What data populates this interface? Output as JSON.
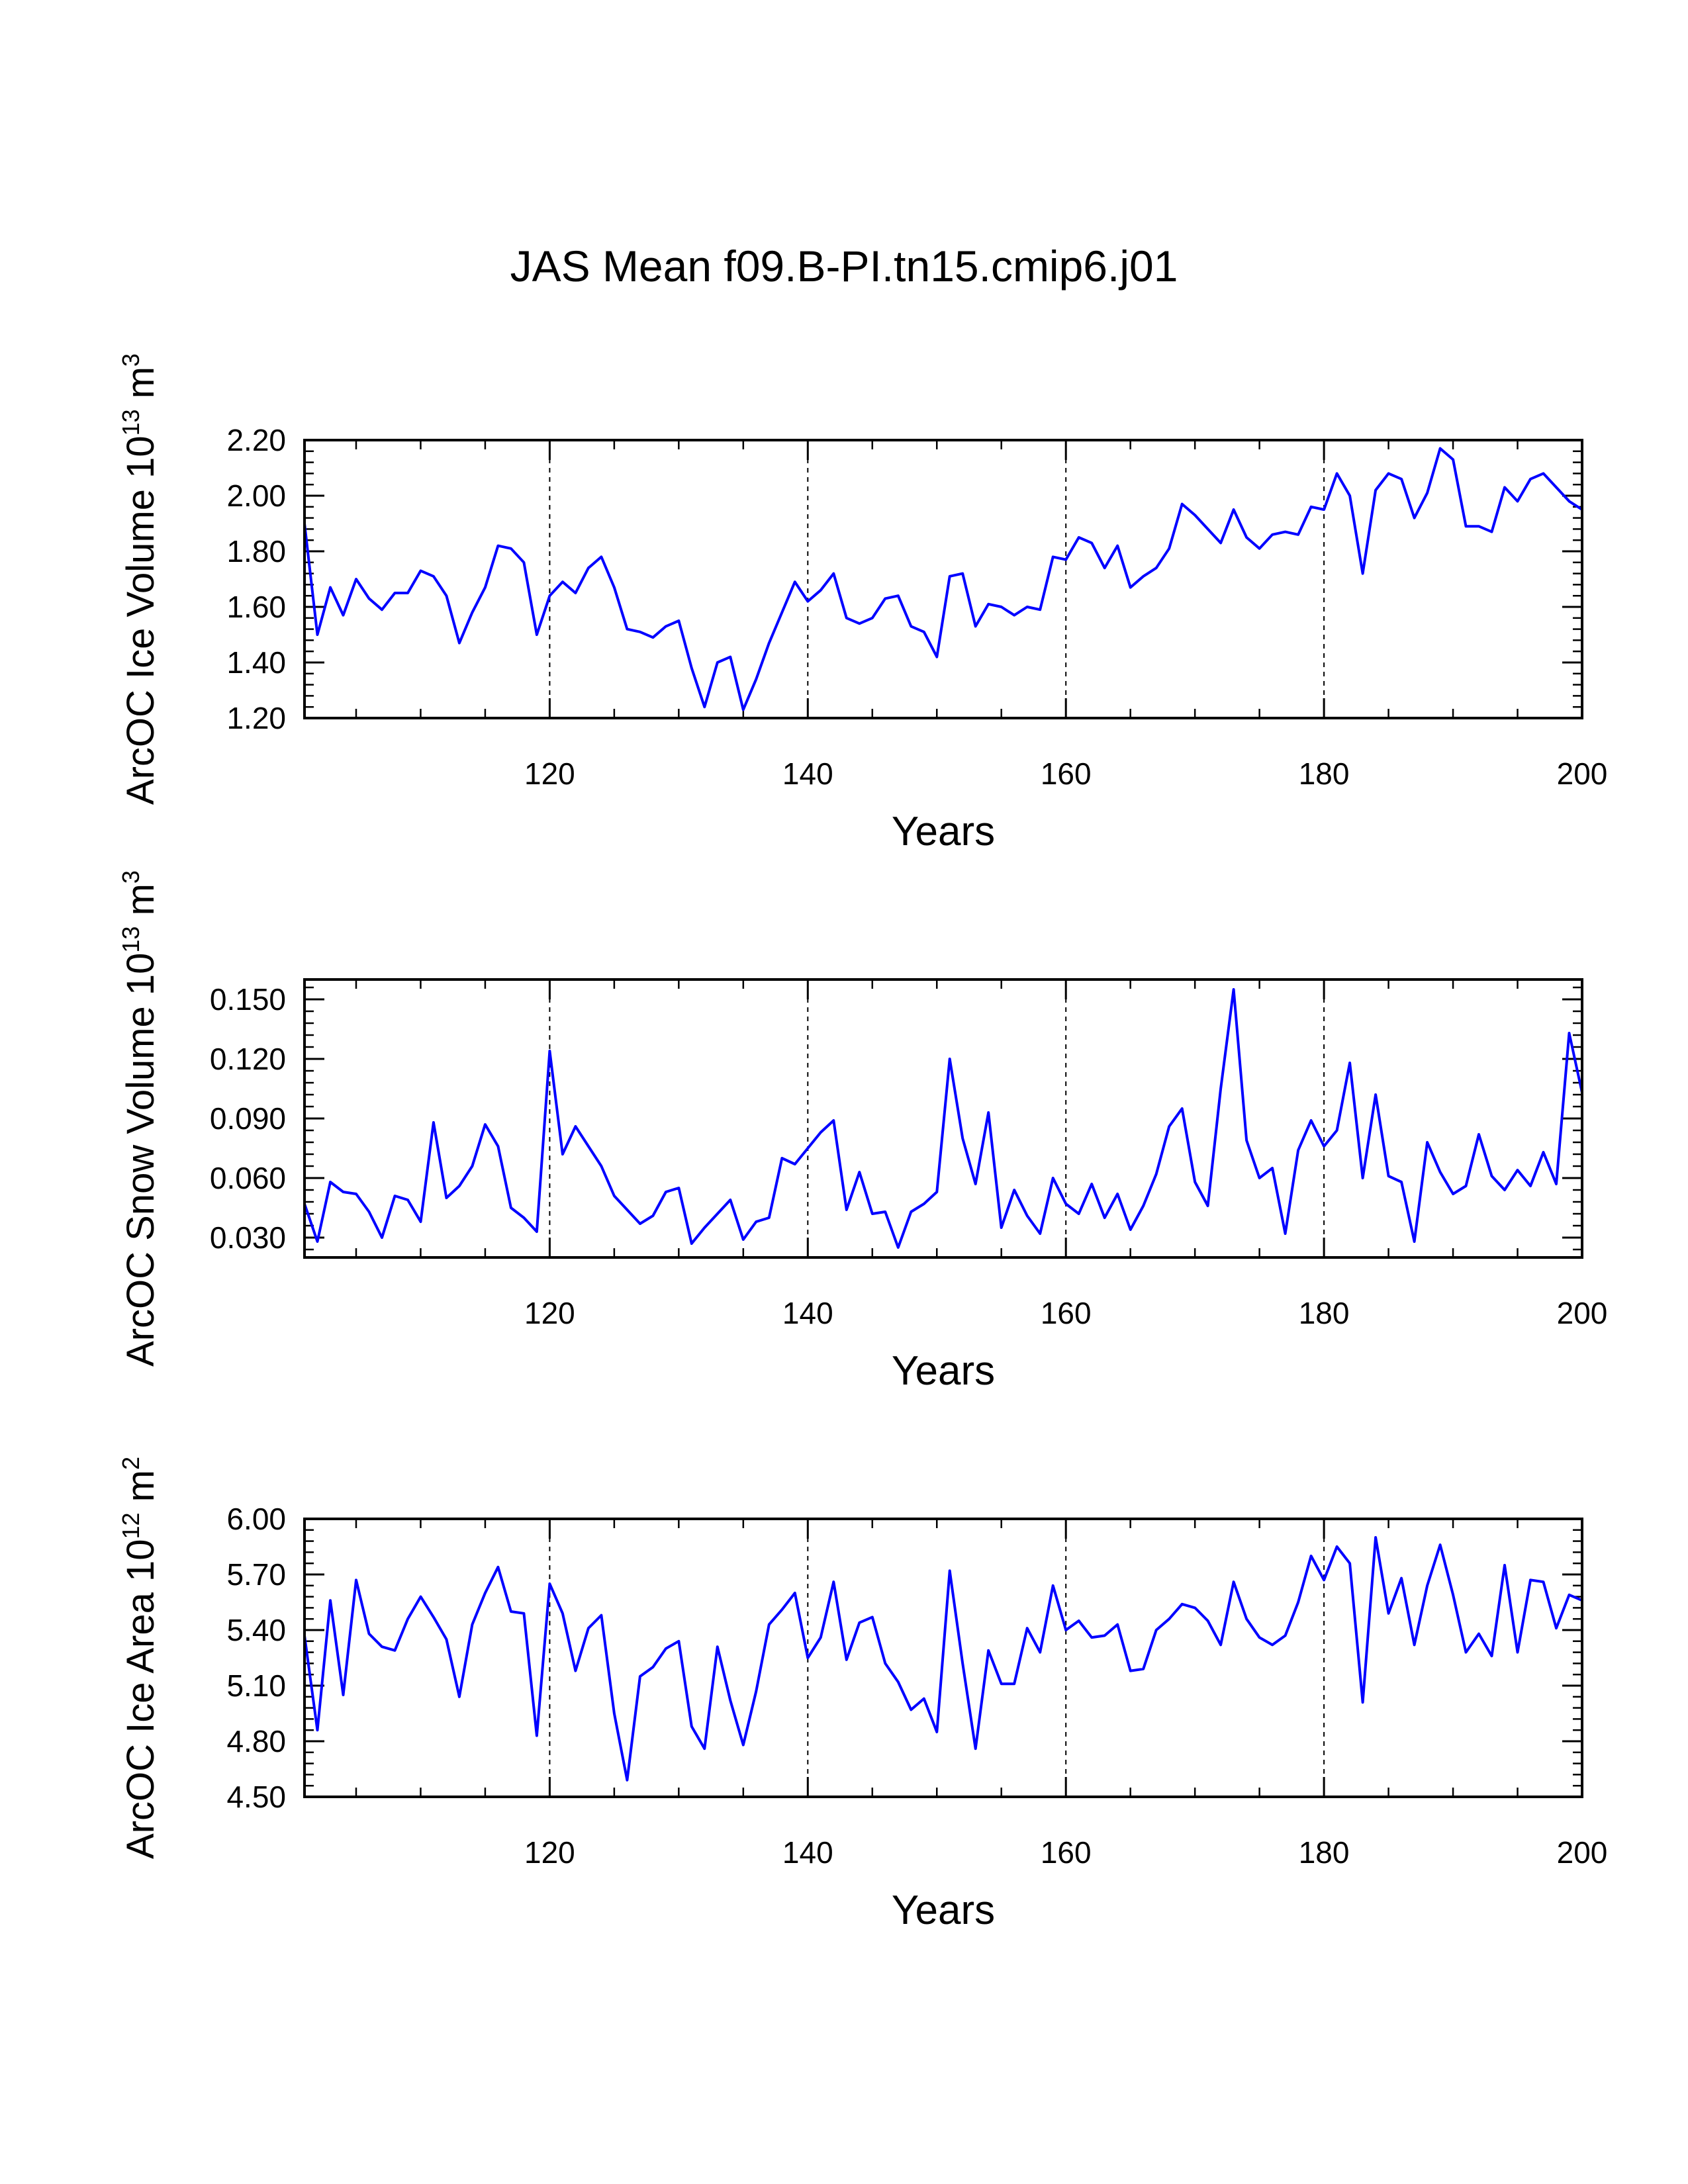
{
  "title": "JAS Mean f09.B-PI.tn15.cmip6.j01",
  "line_color": "#0000ff",
  "chart_data": [
    {
      "type": "line",
      "ylabel_prefix": "ArcOC Ice Volume 10",
      "ylabel_exp": "13",
      "ylabel_unit": " m",
      "ylabel_unit_exp": "3",
      "xlabel": "Years",
      "xlim": [
        101,
        200
      ],
      "ylim": [
        1.2,
        2.2
      ],
      "xticks": [
        120,
        140,
        160,
        180,
        200
      ],
      "xtick_labels": [
        "120",
        "140",
        "160",
        "180",
        "200"
      ],
      "yticks": [
        1.2,
        1.4,
        1.6,
        1.8,
        2.0,
        2.2
      ],
      "ytick_labels": [
        "1.20",
        "1.40",
        "1.60",
        "1.80",
        "2.00",
        "2.20"
      ],
      "grid_x": [
        120,
        140,
        160,
        180
      ],
      "x_start": 101,
      "series": [
        {
          "name": "Ice Volume",
          "values": [
            1.9,
            1.5,
            1.67,
            1.57,
            1.7,
            1.63,
            1.59,
            1.65,
            1.65,
            1.73,
            1.71,
            1.64,
            1.47,
            1.58,
            1.67,
            1.82,
            1.81,
            1.76,
            1.5,
            1.64,
            1.69,
            1.65,
            1.74,
            1.78,
            1.67,
            1.52,
            1.51,
            1.49,
            1.53,
            1.55,
            1.38,
            1.24,
            1.4,
            1.42,
            1.23,
            1.34,
            1.47,
            1.58,
            1.69,
            1.62,
            1.66,
            1.72,
            1.56,
            1.54,
            1.56,
            1.63,
            1.64,
            1.53,
            1.51,
            1.42,
            1.71,
            1.72,
            1.53,
            1.61,
            1.6,
            1.57,
            1.6,
            1.59,
            1.78,
            1.77,
            1.85,
            1.83,
            1.74,
            1.82,
            1.67,
            1.71,
            1.74,
            1.81,
            1.97,
            1.93,
            1.88,
            1.83,
            1.95,
            1.85,
            1.81,
            1.86,
            1.87,
            1.86,
            1.96,
            1.95,
            2.08,
            2.0,
            1.72,
            2.02,
            2.08,
            2.06,
            1.92,
            2.01,
            2.17,
            2.13,
            1.89,
            1.89,
            1.87,
            2.03,
            1.98,
            2.06,
            2.08,
            2.03,
            1.98,
            1.95
          ]
        }
      ]
    },
    {
      "type": "line",
      "ylabel_prefix": "ArcOC Snow Volume 10",
      "ylabel_exp": "13",
      "ylabel_unit": " m",
      "ylabel_unit_exp": "3",
      "xlabel": "Years",
      "xlim": [
        101,
        200
      ],
      "ylim": [
        0.02,
        0.16
      ],
      "xticks": [
        120,
        140,
        160,
        180,
        200
      ],
      "xtick_labels": [
        "120",
        "140",
        "160",
        "180",
        "200"
      ],
      "yticks": [
        0.03,
        0.06,
        0.09,
        0.12,
        0.15
      ],
      "ytick_labels": [
        "0.030",
        "0.060",
        "0.090",
        "0.120",
        "0.150"
      ],
      "grid_x": [
        120,
        140,
        160,
        180
      ],
      "x_start": 101,
      "series": [
        {
          "name": "Snow Volume",
          "values": [
            0.047,
            0.028,
            0.058,
            0.053,
            0.052,
            0.043,
            0.03,
            0.051,
            0.049,
            0.038,
            0.088,
            0.05,
            0.056,
            0.066,
            0.087,
            0.076,
            0.045,
            0.04,
            0.033,
            0.124,
            0.072,
            0.086,
            0.076,
            0.066,
            0.051,
            0.044,
            0.037,
            0.041,
            0.053,
            0.055,
            0.027,
            0.035,
            0.042,
            0.049,
            0.029,
            0.038,
            0.04,
            0.07,
            0.067,
            0.075,
            0.083,
            0.089,
            0.044,
            0.063,
            0.042,
            0.043,
            0.025,
            0.043,
            0.047,
            0.053,
            0.12,
            0.08,
            0.057,
            0.093,
            0.035,
            0.054,
            0.041,
            0.032,
            0.06,
            0.047,
            0.042,
            0.057,
            0.04,
            0.052,
            0.034,
            0.046,
            0.062,
            0.086,
            0.095,
            0.058,
            0.046,
            0.105,
            0.155,
            0.079,
            0.06,
            0.065,
            0.032,
            0.074,
            0.089,
            0.076,
            0.084,
            0.118,
            0.06,
            0.102,
            0.061,
            0.058,
            0.028,
            0.078,
            0.063,
            0.052,
            0.056,
            0.082,
            0.061,
            0.054,
            0.064,
            0.056,
            0.073,
            0.057,
            0.133,
            0.103
          ]
        }
      ]
    },
    {
      "type": "line",
      "ylabel_prefix": "ArcOC Ice Area 10",
      "ylabel_exp": "12",
      "ylabel_unit": " m",
      "ylabel_unit_exp": "2",
      "xlabel": "Years",
      "xlim": [
        101,
        200
      ],
      "ylim": [
        4.5,
        6.0
      ],
      "xticks": [
        120,
        140,
        160,
        180,
        200
      ],
      "xtick_labels": [
        "120",
        "140",
        "160",
        "180",
        "200"
      ],
      "yticks": [
        4.5,
        4.8,
        5.1,
        5.4,
        5.7,
        6.0
      ],
      "ytick_labels": [
        "4.50",
        "4.80",
        "5.10",
        "5.40",
        "5.70",
        "6.00"
      ],
      "grid_x": [
        120,
        140,
        160,
        180
      ],
      "x_start": 101,
      "series": [
        {
          "name": "Ice Area",
          "values": [
            5.37,
            4.86,
            5.56,
            5.05,
            5.67,
            5.38,
            5.31,
            5.29,
            5.46,
            5.58,
            5.47,
            5.35,
            5.04,
            5.43,
            5.6,
            5.74,
            5.5,
            5.49,
            4.83,
            5.65,
            5.49,
            5.18,
            5.41,
            5.48,
            4.95,
            4.59,
            5.15,
            5.2,
            5.3,
            5.34,
            4.88,
            4.76,
            5.31,
            5.02,
            4.78,
            5.07,
            5.43,
            5.51,
            5.6,
            5.25,
            5.36,
            5.66,
            5.24,
            5.44,
            5.47,
            5.22,
            5.12,
            4.97,
            5.03,
            4.85,
            5.72,
            5.22,
            4.76,
            5.29,
            5.11,
            5.11,
            5.41,
            5.28,
            5.64,
            5.4,
            5.45,
            5.36,
            5.37,
            5.43,
            5.18,
            5.19,
            5.4,
            5.46,
            5.54,
            5.52,
            5.45,
            5.32,
            5.66,
            5.46,
            5.36,
            5.32,
            5.37,
            5.55,
            5.8,
            5.67,
            5.85,
            5.76,
            5.01,
            5.9,
            5.49,
            5.68,
            5.32,
            5.64,
            5.86,
            5.59,
            5.28,
            5.38,
            5.26,
            5.75,
            5.28,
            5.67,
            5.66,
            5.41,
            5.59,
            5.56
          ]
        }
      ]
    }
  ]
}
